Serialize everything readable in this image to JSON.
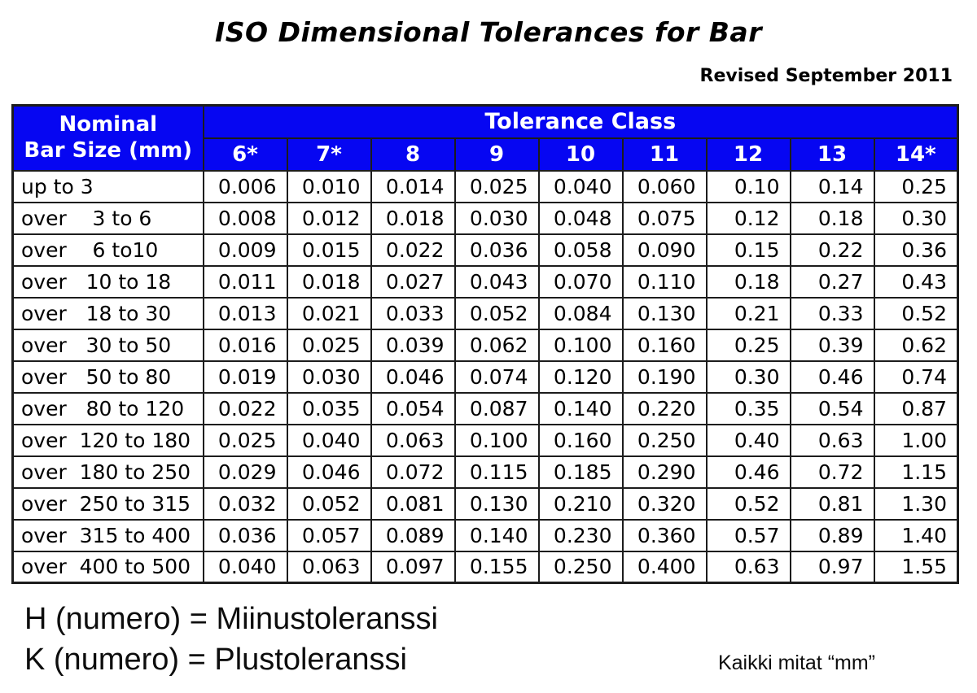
{
  "header": {
    "title": "ISO Dimensional Tolerances for Bar",
    "revision": "Revised September 2011"
  },
  "table": {
    "corner_header": "Nominal\nBar Size (mm)",
    "group_header": "Tolerance Class",
    "class_labels": [
      "6*",
      "7*",
      "8",
      "9",
      "10",
      "11",
      "12",
      "13",
      "14*"
    ],
    "rows": [
      {
        "label": "up to 3",
        "values": [
          "0.006",
          "0.010",
          "0.014",
          "0.025",
          "0.040",
          "0.060",
          "0.10",
          "0.14",
          "0.25"
        ]
      },
      {
        "label": "over    3 to 6",
        "values": [
          "0.008",
          "0.012",
          "0.018",
          "0.030",
          "0.048",
          "0.075",
          "0.12",
          "0.18",
          "0.30"
        ]
      },
      {
        "label": "over    6 to10",
        "values": [
          "0.009",
          "0.015",
          "0.022",
          "0.036",
          "0.058",
          "0.090",
          "0.15",
          "0.22",
          "0.36"
        ]
      },
      {
        "label": "over   10 to 18",
        "values": [
          "0.011",
          "0.018",
          "0.027",
          "0.043",
          "0.070",
          "0.110",
          "0.18",
          "0.27",
          "0.43"
        ]
      },
      {
        "label": "over   18 to 30",
        "values": [
          "0.013",
          "0.021",
          "0.033",
          "0.052",
          "0.084",
          "0.130",
          "0.21",
          "0.33",
          "0.52"
        ]
      },
      {
        "label": "over   30 to 50",
        "values": [
          "0.016",
          "0.025",
          "0.039",
          "0.062",
          "0.100",
          "0.160",
          "0.25",
          "0.39",
          "0.62"
        ]
      },
      {
        "label": "over   50 to 80",
        "values": [
          "0.019",
          "0.030",
          "0.046",
          "0.074",
          "0.120",
          "0.190",
          "0.30",
          "0.46",
          "0.74"
        ]
      },
      {
        "label": "over   80 to 120",
        "values": [
          "0.022",
          "0.035",
          "0.054",
          "0.087",
          "0.140",
          "0.220",
          "0.35",
          "0.54",
          "0.87"
        ]
      },
      {
        "label": "over  120 to 180",
        "values": [
          "0.025",
          "0.040",
          "0.063",
          "0.100",
          "0.160",
          "0.250",
          "0.40",
          "0.63",
          "1.00"
        ]
      },
      {
        "label": "over  180 to 250",
        "values": [
          "0.029",
          "0.046",
          "0.072",
          "0.115",
          "0.185",
          "0.290",
          "0.46",
          "0.72",
          "1.15"
        ]
      },
      {
        "label": "over  250 to 315",
        "values": [
          "0.032",
          "0.052",
          "0.081",
          "0.130",
          "0.210",
          "0.320",
          "0.52",
          "0.81",
          "1.30"
        ]
      },
      {
        "label": "over  315 to 400",
        "values": [
          "0.036",
          "0.057",
          "0.089",
          "0.140",
          "0.230",
          "0.360",
          "0.57",
          "0.89",
          "1.40"
        ]
      },
      {
        "label": "over  400 to 500",
        "values": [
          "0.040",
          "0.063",
          "0.097",
          "0.155",
          "0.250",
          "0.400",
          "0.63",
          "0.97",
          "1.55"
        ]
      }
    ]
  },
  "footer": {
    "line1": "H (numero) = Miinustoleranssi",
    "line2": "K (numero) = Plustoleranssi",
    "units_note": "Kaikki mitat “mm”"
  },
  "colors": {
    "header_blue": "#0606F2",
    "border": "#1c1c1c",
    "header_text": "#ffffff"
  }
}
